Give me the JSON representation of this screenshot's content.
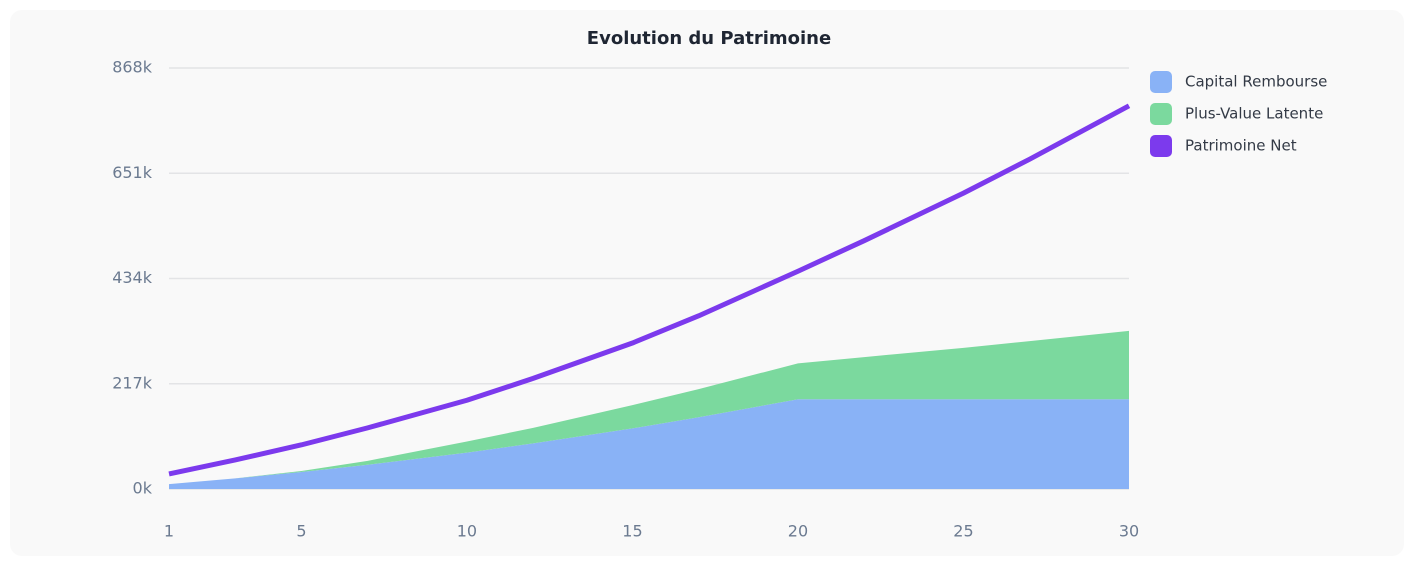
{
  "chart_data": {
    "type": "stacked-area-line",
    "title": "Evolution du Patrimoine",
    "x": [
      1,
      3,
      5,
      7,
      10,
      12,
      15,
      17,
      20,
      22,
      25,
      27,
      30
    ],
    "series": [
      {
        "name": "Capital Rembourse",
        "color": "#89b2f6",
        "kind": "area",
        "values": [
          10000,
          22000,
          35000,
          50000,
          75000,
          94000,
          125000,
          148000,
          185000,
          185000,
          185000,
          185000,
          185000
        ]
      },
      {
        "name": "Plus-Value Latente",
        "color": "#7bd99e",
        "kind": "area",
        "values": [
          0,
          0,
          2000,
          8000,
          23000,
          32000,
          48000,
          58000,
          74000,
          87000,
          106000,
          120000,
          141000
        ]
      },
      {
        "name": "Patrimoine Net",
        "color": "#7c3aed",
        "kind": "line",
        "values": [
          31000,
          60000,
          91000,
          126000,
          183000,
          228000,
          301000,
          357000,
          449000,
          512000,
          610000,
          680000,
          790000
        ]
      }
    ],
    "xlim": [
      1,
      30
    ],
    "xticks": [
      1,
      5,
      10,
      15,
      20,
      25,
      30
    ],
    "ylim": [
      0,
      868000
    ],
    "yticks": [
      {
        "value": 0,
        "label": "0k"
      },
      {
        "value": 217000,
        "label": "217k"
      },
      {
        "value": 434000,
        "label": "434k"
      },
      {
        "value": 651000,
        "label": "651k"
      },
      {
        "value": 868000,
        "label": "868k"
      }
    ],
    "grid": true,
    "legend": "top-right"
  }
}
